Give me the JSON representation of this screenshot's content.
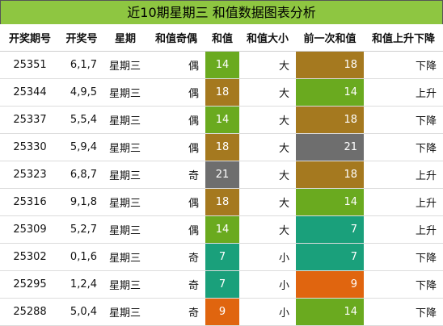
{
  "title": "近10期星期三 和值数据图表分析",
  "headers": [
    "开奖期号",
    "开奖号",
    "星期",
    "和值奇偶",
    "和值",
    "和值大小",
    "前一次和值",
    "和值上升下降"
  ],
  "colors": {
    "green": "#6aaa1f",
    "brown": "#a5791f",
    "gray": "#6e6e6e",
    "teal": "#1aa07b",
    "orange": "#e0650f",
    "title_bg": "#8ec641"
  },
  "rows": [
    {
      "issue": "25351",
      "numbers": "6,1,7",
      "weekday": "星期三",
      "parity": "偶",
      "sum": "14",
      "sum_color": "green",
      "size": "大",
      "prev": "18",
      "prev_color": "brown",
      "trend": "下降"
    },
    {
      "issue": "25344",
      "numbers": "4,9,5",
      "weekday": "星期三",
      "parity": "偶",
      "sum": "18",
      "sum_color": "brown",
      "size": "大",
      "prev": "14",
      "prev_color": "green",
      "trend": "上升"
    },
    {
      "issue": "25337",
      "numbers": "5,5,4",
      "weekday": "星期三",
      "parity": "偶",
      "sum": "14",
      "sum_color": "green",
      "size": "大",
      "prev": "18",
      "prev_color": "brown",
      "trend": "下降"
    },
    {
      "issue": "25330",
      "numbers": "5,9,4",
      "weekday": "星期三",
      "parity": "偶",
      "sum": "18",
      "sum_color": "brown",
      "size": "大",
      "prev": "21",
      "prev_color": "gray",
      "trend": "下降"
    },
    {
      "issue": "25323",
      "numbers": "6,8,7",
      "weekday": "星期三",
      "parity": "奇",
      "sum": "21",
      "sum_color": "gray",
      "size": "大",
      "prev": "18",
      "prev_color": "brown",
      "trend": "上升"
    },
    {
      "issue": "25316",
      "numbers": "9,1,8",
      "weekday": "星期三",
      "parity": "偶",
      "sum": "18",
      "sum_color": "brown",
      "size": "大",
      "prev": "14",
      "prev_color": "green",
      "trend": "上升"
    },
    {
      "issue": "25309",
      "numbers": "5,2,7",
      "weekday": "星期三",
      "parity": "偶",
      "sum": "14",
      "sum_color": "green",
      "size": "大",
      "prev": "7",
      "prev_color": "teal",
      "trend": "上升"
    },
    {
      "issue": "25302",
      "numbers": "0,1,6",
      "weekday": "星期三",
      "parity": "奇",
      "sum": "7",
      "sum_color": "teal",
      "size": "小",
      "prev": "7",
      "prev_color": "teal",
      "trend": "下降"
    },
    {
      "issue": "25295",
      "numbers": "1,2,4",
      "weekday": "星期三",
      "parity": "奇",
      "sum": "7",
      "sum_color": "teal",
      "size": "小",
      "prev": "9",
      "prev_color": "orange",
      "trend": "下降"
    },
    {
      "issue": "25288",
      "numbers": "5,0,4",
      "weekday": "星期三",
      "parity": "奇",
      "sum": "9",
      "sum_color": "orange",
      "size": "小",
      "prev": "14",
      "prev_color": "green",
      "trend": "下降"
    }
  ]
}
